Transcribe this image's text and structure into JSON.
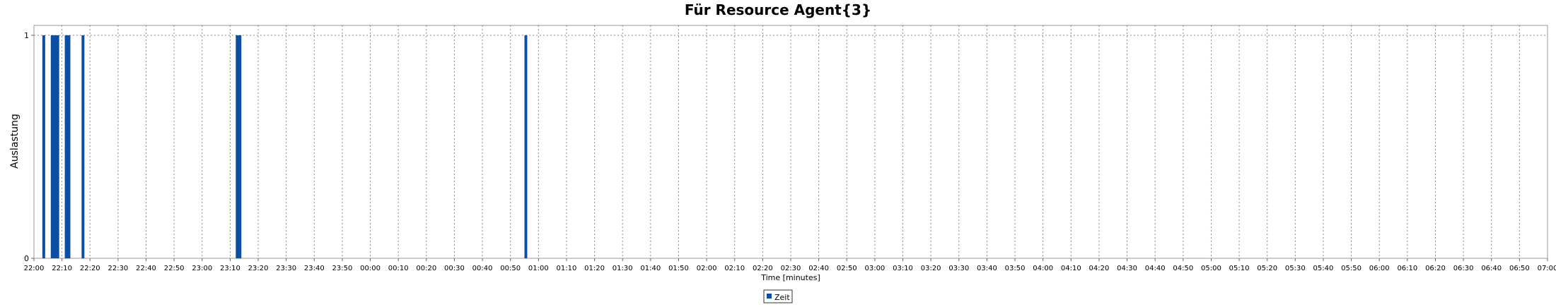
{
  "chart_data": {
    "type": "bar",
    "title": "Für Resource Agent{3}",
    "xlabel": "Time [minutes]",
    "ylabel": "Auslastung",
    "ylim": [
      0,
      1
    ],
    "yticks": [
      "0",
      "1"
    ],
    "xticks": [
      "22:00",
      "22:10",
      "22:20",
      "22:30",
      "22:40",
      "22:50",
      "23:00",
      "23:10",
      "23:20",
      "23:30",
      "23:40",
      "23:50",
      "00:00",
      "00:10",
      "00:20",
      "00:30",
      "00:40",
      "00:50",
      "01:00",
      "01:10",
      "01:20",
      "01:30",
      "01:40",
      "01:50",
      "02:00",
      "02:10",
      "02:20",
      "02:30",
      "02:40",
      "02:50",
      "03:00",
      "03:10",
      "03:20",
      "03:30",
      "03:40",
      "03:50",
      "04:00",
      "04:10",
      "04:20",
      "04:30",
      "04:40",
      "04:50",
      "05:00",
      "05:10",
      "05:20",
      "05:30",
      "05:40",
      "05:50",
      "06:00",
      "06:10",
      "06:20",
      "06:30",
      "06:40",
      "06:50",
      "07:00"
    ],
    "grid": true,
    "legend_position": "bottom",
    "series": [
      {
        "name": "Zeit",
        "color": "#0b4ea2",
        "points": [
          {
            "start": "22:03",
            "end": "22:04",
            "value": 1
          },
          {
            "start": "22:06",
            "end": "22:09",
            "value": 1
          },
          {
            "start": "22:11",
            "end": "22:13",
            "value": 1
          },
          {
            "start": "22:17",
            "end": "22:18",
            "value": 1
          },
          {
            "start": "23:12",
            "end": "23:14",
            "value": 1
          },
          {
            "start": "00:55",
            "end": "00:56",
            "value": 1
          }
        ]
      }
    ]
  }
}
